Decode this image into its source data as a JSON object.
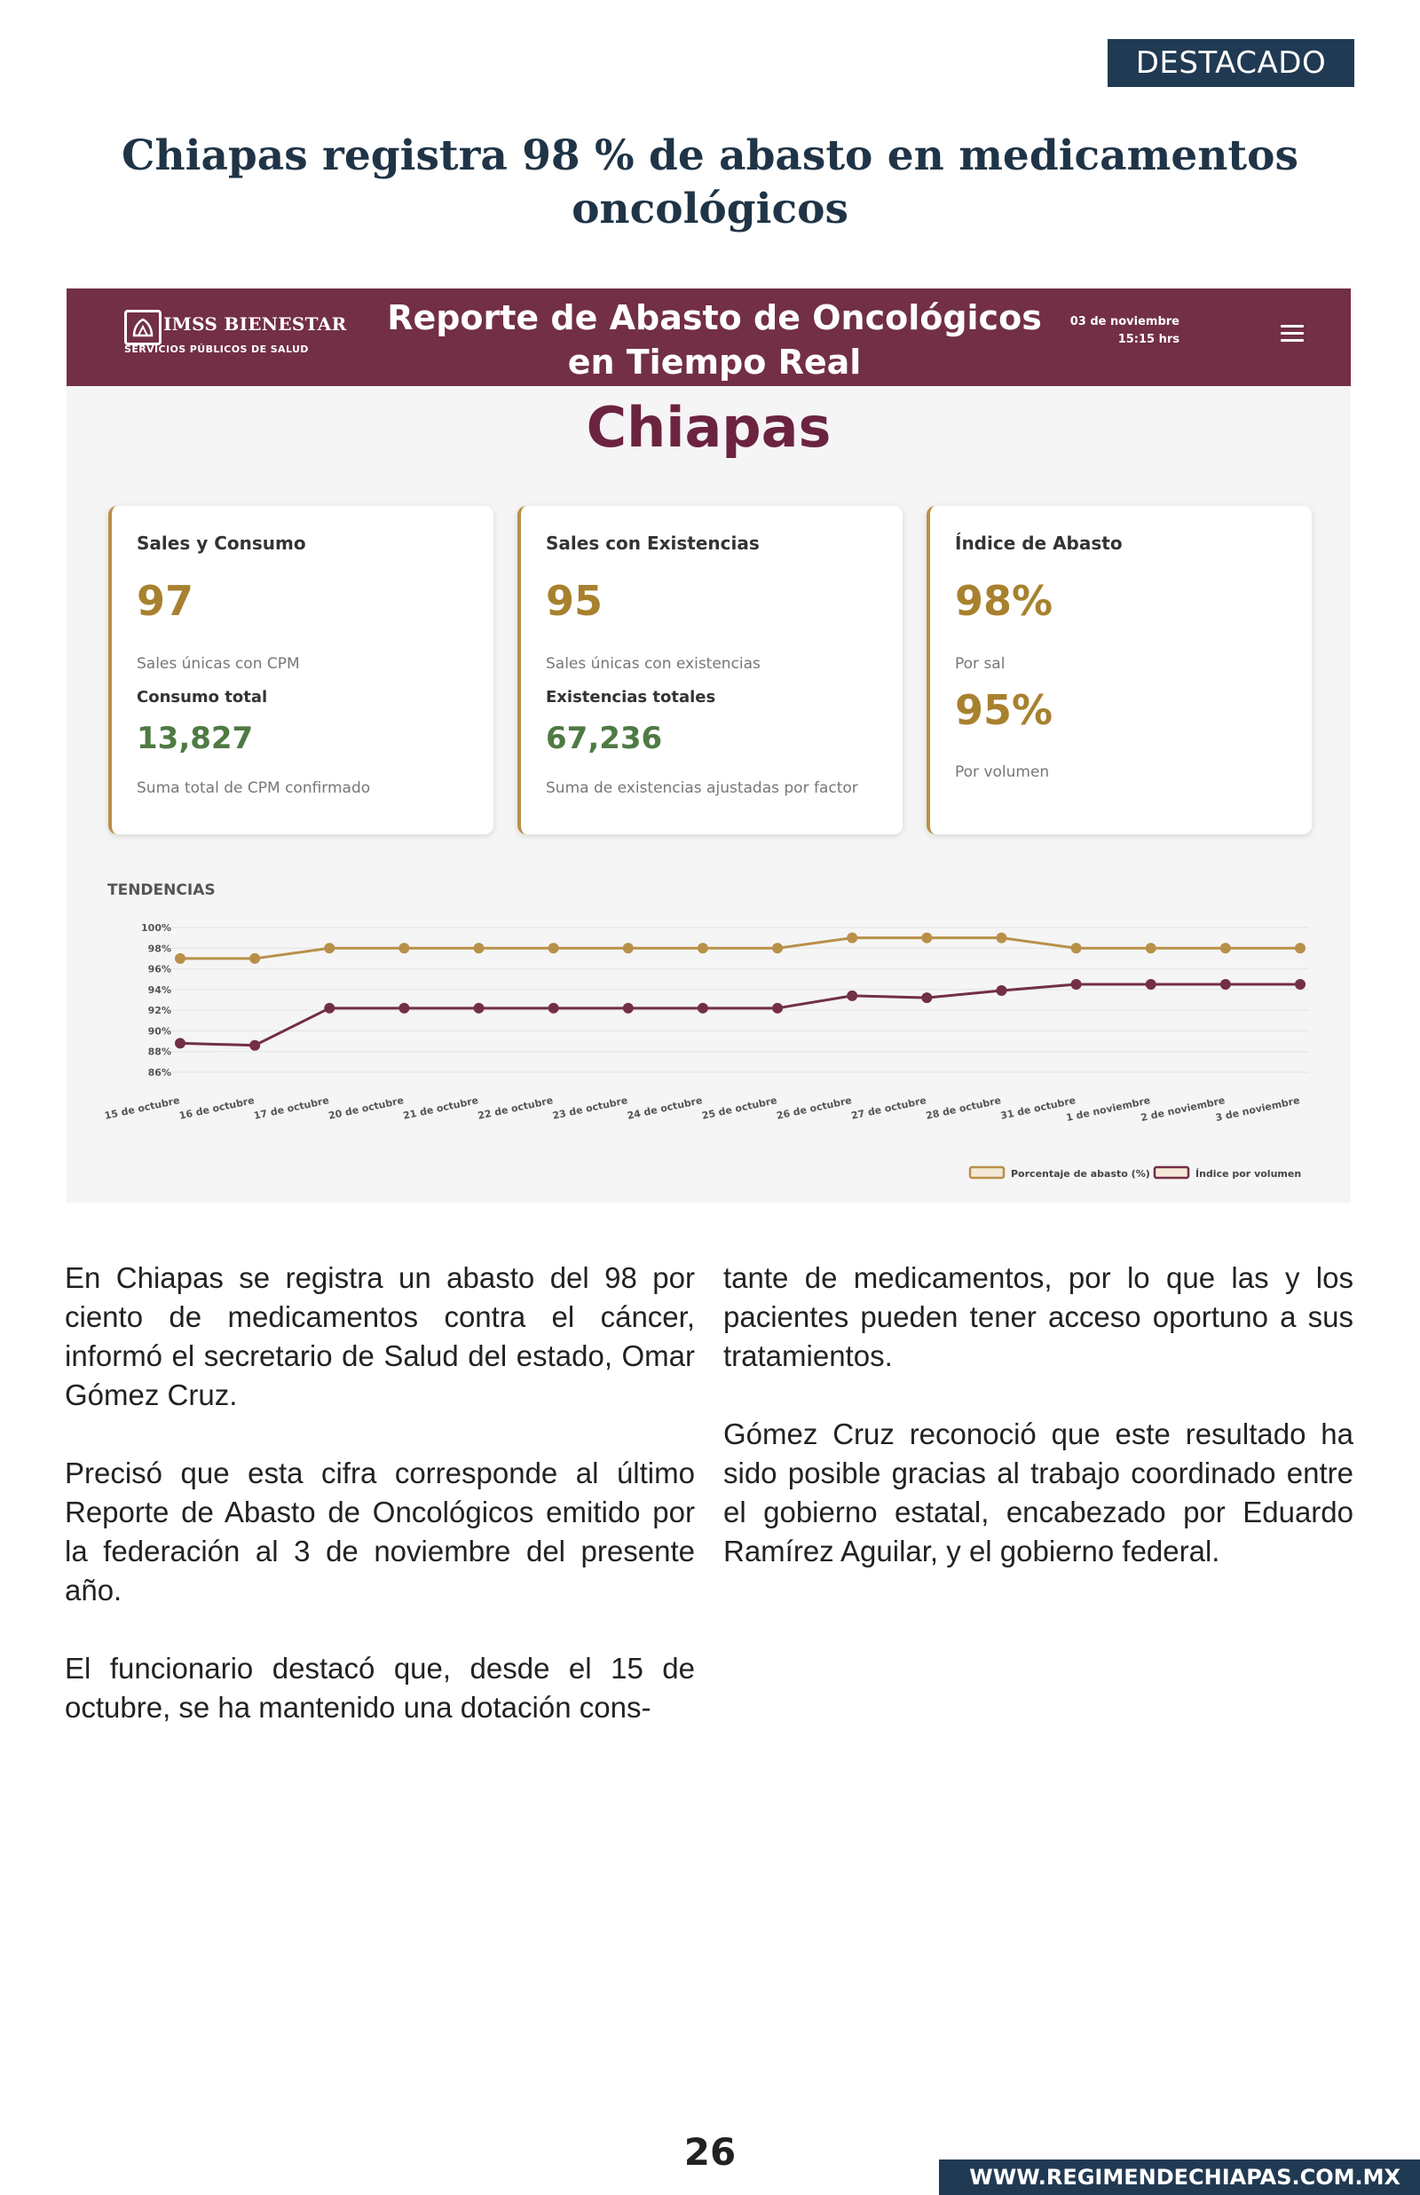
{
  "section_badge": "DESTACADO",
  "headline": "Chiapas registra 98 % de abasto en medicamentos oncológicos",
  "dashboard": {
    "logo_name": "IMSS BIENESTAR",
    "logo_sub": "SERVICIOS PÚBLICOS DE SALUD",
    "report_title_line1": "Reporte de Abasto de Oncológicos",
    "report_title_line2": "en Tiempo Real",
    "date": "03 de noviembre",
    "time": "15:15 hrs",
    "state": "Chiapas",
    "cards": [
      {
        "title": "Sales y Consumo",
        "value": "97",
        "value_caption": "Sales únicas con CPM",
        "sub_label": "Consumo total",
        "sub_value": "13,827",
        "sub_caption": "Suma total de CPM confirmado"
      },
      {
        "title": "Sales con Existencias",
        "value": "95",
        "value_caption": "Sales únicas con existencias",
        "sub_label": "Existencias totales",
        "sub_value": "67,236",
        "sub_caption": "Suma de existencias ajustadas por factor"
      },
      {
        "title": "Índice de Abasto",
        "value": "98%",
        "value_caption": "Por sal",
        "value2": "95%",
        "value2_caption": "Por volumen"
      }
    ],
    "trends_label": "TENDENCIAS"
  },
  "chart_data": {
    "type": "line",
    "categories": [
      "15 de octubre",
      "16 de octubre",
      "17 de octubre",
      "20 de octubre",
      "21 de octubre",
      "22 de octubre",
      "23 de octubre",
      "24 de octubre",
      "25 de octubre",
      "26 de octubre",
      "27 de octubre",
      "28 de octubre",
      "31 de octubre",
      "1 de noviembre",
      "2 de noviembre",
      "3 de noviembre"
    ],
    "series": [
      {
        "name": "Porcentaje de abasto (%)",
        "color": "#b99049",
        "values": [
          97,
          97,
          98,
          98,
          98,
          98,
          98,
          98,
          98,
          99,
          99,
          99,
          98,
          98,
          98,
          98
        ]
      },
      {
        "name": "Índice por volumen",
        "color": "#722f45",
        "values": [
          88.8,
          88.6,
          92.2,
          92.2,
          92.2,
          92.2,
          92.2,
          92.2,
          92.2,
          93.4,
          93.2,
          93.9,
          94.5,
          94.5,
          94.5,
          94.5
        ]
      }
    ],
    "yticks": [
      "100%",
      "98%",
      "96%",
      "94%",
      "92%",
      "90%",
      "88%",
      "86%"
    ],
    "ylim": [
      86,
      100
    ],
    "grid": true,
    "legend": "bottom-right"
  },
  "article": {
    "col1": [
      "En Chiapas se registra un abasto del 98 por ciento de medicamentos contra el cáncer, informó el secretario de Salud del estado, Omar Gómez Cruz.",
      "Precisó que esta cifra corresponde al último Reporte de Abasto de Oncológicos emitido por la federación al 3 de noviembre del presente año.",
      "El funcionario destacó que, desde el 15 de octubre, se ha mantenido una dotación cons-"
    ],
    "col2": [
      "tante de medicamentos, por lo que las y los pacientes pueden tener acceso oportuno a sus tratamientos.",
      "Gómez Cruz reconoció que este resultado ha sido posible gracias al trabajo coordinado entre el gobierno estatal, encabezado por Eduardo Ramírez Aguilar, y el gobierno federal."
    ]
  },
  "footer": {
    "page_number": "26",
    "website": "WWW.REGIMENDECHIAPAS.COM.MX"
  }
}
